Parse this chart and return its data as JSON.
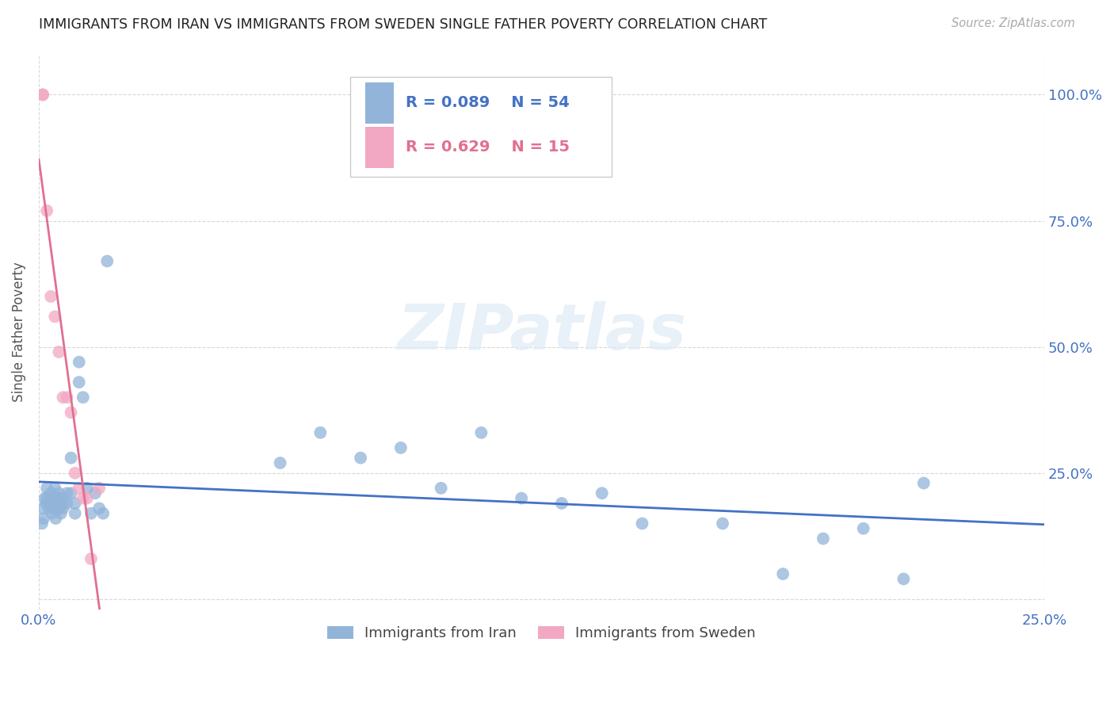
{
  "title": "IMMIGRANTS FROM IRAN VS IMMIGRANTS FROM SWEDEN SINGLE FATHER POVERTY CORRELATION CHART",
  "source": "Source: ZipAtlas.com",
  "ylabel": "Single Father Poverty",
  "xlim": [
    0.0,
    0.25
  ],
  "ylim": [
    -0.02,
    1.08
  ],
  "ytick_labels": [
    "",
    "25.0%",
    "50.0%",
    "75.0%",
    "100.0%"
  ],
  "ytick_values": [
    0.0,
    0.25,
    0.5,
    0.75,
    1.0
  ],
  "xtick_labels": [
    "0.0%",
    "25.0%"
  ],
  "xtick_values": [
    0.0,
    0.25
  ],
  "iran_color": "#92b4d9",
  "sweden_color": "#f2a7c3",
  "iran_line_color": "#4472c4",
  "sweden_line_color": "#e07090",
  "legend_r_iran": "0.089",
  "legend_n_iran": "54",
  "legend_r_sweden": "0.629",
  "legend_n_sweden": "15",
  "iran_x": [
    0.0008,
    0.001,
    0.0012,
    0.0015,
    0.0018,
    0.002,
    0.002,
    0.0025,
    0.003,
    0.003,
    0.0032,
    0.0035,
    0.004,
    0.004,
    0.0042,
    0.0045,
    0.005,
    0.005,
    0.005,
    0.0055,
    0.006,
    0.006,
    0.006,
    0.007,
    0.007,
    0.008,
    0.008,
    0.009,
    0.009,
    0.01,
    0.01,
    0.011,
    0.012,
    0.013,
    0.014,
    0.015,
    0.016,
    0.017,
    0.06,
    0.07,
    0.08,
    0.09,
    0.1,
    0.11,
    0.12,
    0.13,
    0.14,
    0.15,
    0.17,
    0.185,
    0.195,
    0.205,
    0.215,
    0.22
  ],
  "iran_y": [
    0.15,
    0.18,
    0.16,
    0.2,
    0.19,
    0.2,
    0.22,
    0.18,
    0.21,
    0.19,
    0.17,
    0.2,
    0.22,
    0.18,
    0.16,
    0.2,
    0.21,
    0.2,
    0.18,
    0.17,
    0.2,
    0.19,
    0.18,
    0.21,
    0.19,
    0.28,
    0.21,
    0.19,
    0.17,
    0.47,
    0.43,
    0.4,
    0.22,
    0.17,
    0.21,
    0.18,
    0.17,
    0.67,
    0.27,
    0.33,
    0.28,
    0.3,
    0.22,
    0.33,
    0.2,
    0.19,
    0.21,
    0.15,
    0.15,
    0.05,
    0.12,
    0.14,
    0.04,
    0.23
  ],
  "sweden_x": [
    0.001,
    0.001,
    0.002,
    0.003,
    0.004,
    0.005,
    0.006,
    0.007,
    0.008,
    0.009,
    0.01,
    0.011,
    0.012,
    0.013,
    0.015
  ],
  "sweden_y": [
    1.0,
    1.0,
    0.77,
    0.6,
    0.56,
    0.49,
    0.4,
    0.4,
    0.37,
    0.25,
    0.22,
    0.2,
    0.2,
    0.08,
    0.22
  ],
  "background_color": "#ffffff",
  "grid_color": "#d8d8d8",
  "title_color": "#222222",
  "axis_label_color": "#555555",
  "tick_label_color": "#4472c4"
}
